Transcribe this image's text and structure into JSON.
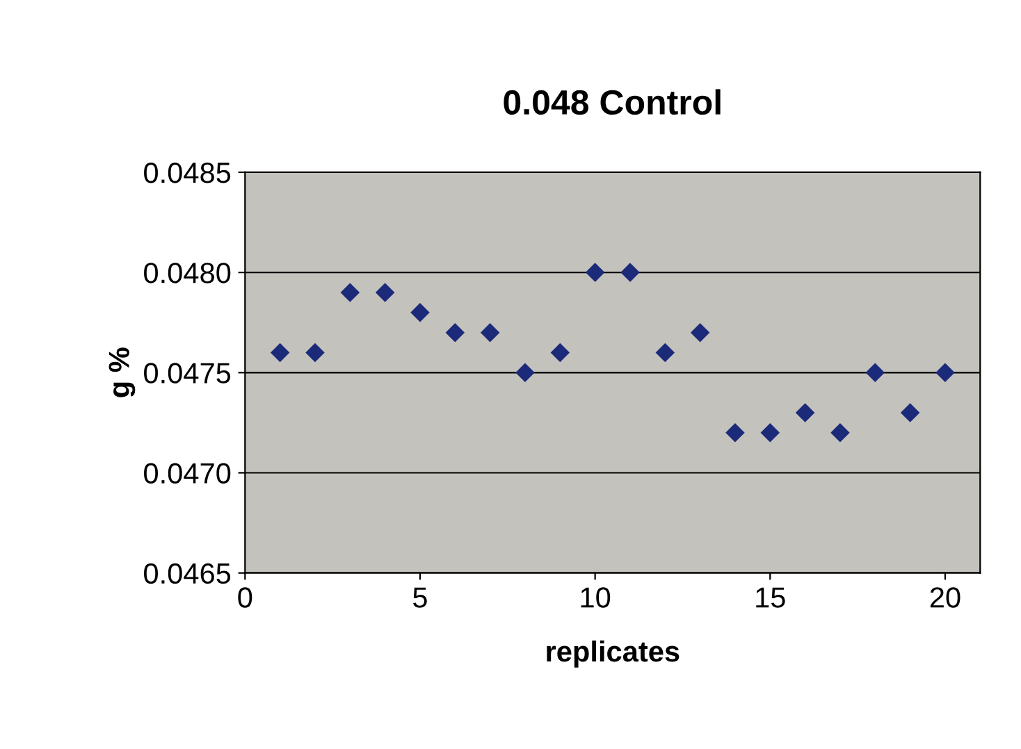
{
  "chart_data": {
    "type": "scatter",
    "title": "0.048 Control",
    "xlabel": "replicates",
    "ylabel": "g %",
    "x": [
      1,
      2,
      3,
      4,
      5,
      6,
      7,
      8,
      9,
      10,
      11,
      12,
      13,
      14,
      15,
      16,
      17,
      18,
      19,
      20
    ],
    "series": [
      {
        "color": "#1c2a7a",
        "values": [
          0.0476,
          0.0476,
          0.0479,
          0.0479,
          0.0478,
          0.0477,
          0.0477,
          0.0475,
          0.0476,
          0.048,
          0.048,
          0.0476,
          0.0477,
          0.0472,
          0.0472,
          0.0473,
          0.0472,
          0.0475,
          0.0473,
          0.0475
        ]
      }
    ],
    "xlim": [
      0,
      21
    ],
    "xticks": [
      0,
      5,
      10,
      15,
      20
    ],
    "ylim": [
      0.0465,
      0.0485
    ],
    "yticks": [
      {
        "value": 0.0465,
        "label": "0.0465"
      },
      {
        "value": 0.047,
        "label": "0.0470"
      },
      {
        "value": 0.0475,
        "label": "0.0475"
      },
      {
        "value": 0.048,
        "label": "0.0480"
      },
      {
        "value": 0.0485,
        "label": "0.0485"
      }
    ],
    "grid": "y",
    "marker": "diamond",
    "legend": false
  }
}
